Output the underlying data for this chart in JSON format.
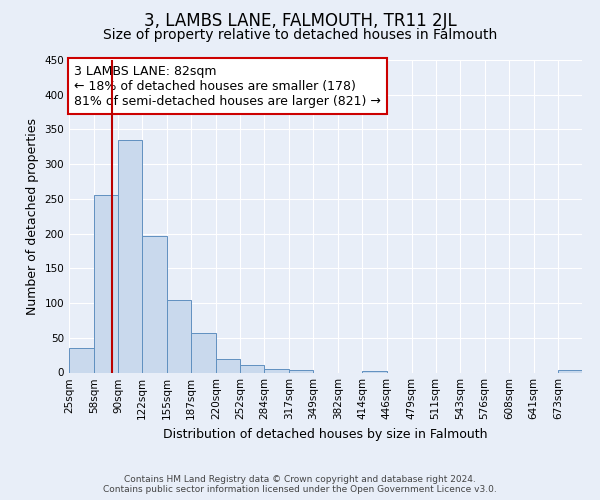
{
  "title": "3, LAMBS LANE, FALMOUTH, TR11 2JL",
  "subtitle": "Size of property relative to detached houses in Falmouth",
  "xlabel": "Distribution of detached houses by size in Falmouth",
  "ylabel": "Number of detached properties",
  "footer_line1": "Contains HM Land Registry data © Crown copyright and database right 2024.",
  "footer_line2": "Contains public sector information licensed under the Open Government Licence v3.0.",
  "bin_labels": [
    "25sqm",
    "58sqm",
    "90sqm",
    "122sqm",
    "155sqm",
    "187sqm",
    "220sqm",
    "252sqm",
    "284sqm",
    "317sqm",
    "349sqm",
    "382sqm",
    "414sqm",
    "446sqm",
    "479sqm",
    "511sqm",
    "543sqm",
    "576sqm",
    "608sqm",
    "641sqm",
    "673sqm"
  ],
  "bar_values": [
    35,
    255,
    335,
    197,
    105,
    57,
    20,
    11,
    5,
    3,
    0,
    0,
    2,
    0,
    0,
    0,
    0,
    0,
    0,
    0,
    3
  ],
  "bar_color": "#c9d9ed",
  "bar_edge_color": "#6090c0",
  "ylim": [
    0,
    450
  ],
  "yticks": [
    0,
    50,
    100,
    150,
    200,
    250,
    300,
    350,
    400,
    450
  ],
  "property_line_x": 82,
  "bin_edges_numeric": [
    25,
    58,
    90,
    122,
    155,
    187,
    220,
    252,
    284,
    317,
    349,
    382,
    414,
    446,
    479,
    511,
    543,
    576,
    608,
    641,
    673,
    705
  ],
  "annotation_title": "3 LAMBS LANE: 82sqm",
  "annotation_line2": "← 18% of detached houses are smaller (178)",
  "annotation_line3": "81% of semi-detached houses are larger (821) →",
  "annotation_box_color": "#ffffff",
  "annotation_box_edge": "#cc0000",
  "vline_color": "#bb0000",
  "bg_color": "#e8eef8",
  "grid_color": "#ffffff",
  "title_fontsize": 12,
  "subtitle_fontsize": 10,
  "axis_label_fontsize": 9,
  "tick_fontsize": 7.5,
  "annotation_fontsize": 9,
  "footer_fontsize": 6.5
}
